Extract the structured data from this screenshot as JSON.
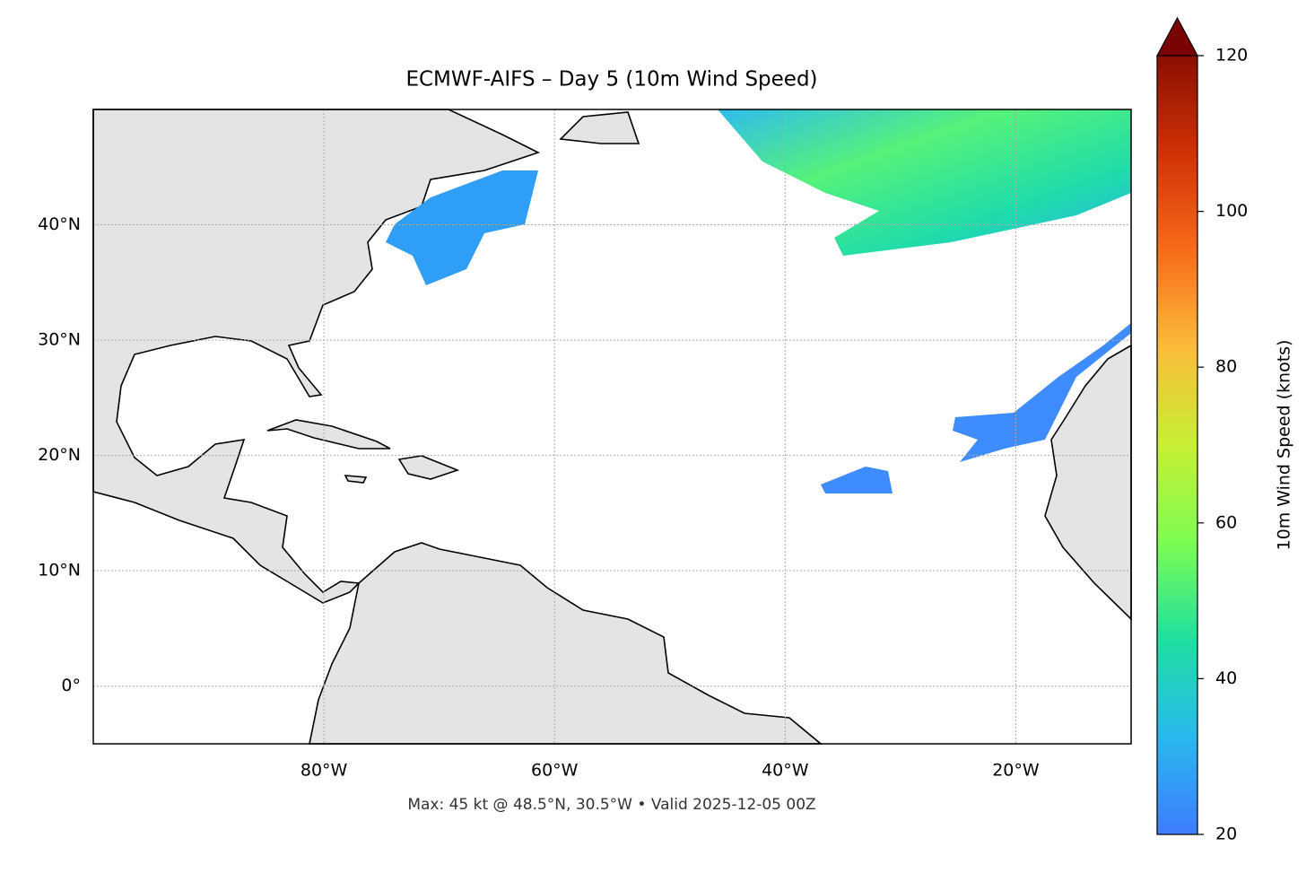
{
  "chart_data": {
    "type": "map",
    "title": "ECMWF-AIFS – Day 5 (10m Wind Speed)",
    "annotation": "Max: 45 kt @ 48.5°N, 30.5°W • Valid 2025-12-05 00Z",
    "xlim": [
      -100,
      -10
    ],
    "ylim": [
      -5,
      50
    ],
    "xticks": [
      {
        "value": -80,
        "label": "80°W"
      },
      {
        "value": -60,
        "label": "60°W"
      },
      {
        "value": -40,
        "label": "40°W"
      },
      {
        "value": -20,
        "label": "20°W"
      }
    ],
    "yticks": [
      {
        "value": 0,
        "label": "0°"
      },
      {
        "value": 10,
        "label": "10°N"
      },
      {
        "value": 20,
        "label": "20°N"
      },
      {
        "value": 30,
        "label": "30°N"
      },
      {
        "value": 40,
        "label": "40°N"
      }
    ],
    "grid": true,
    "colorbar": {
      "label": "10m Wind Speed (knots)",
      "clim": [
        20,
        120
      ],
      "ticks": [
        20,
        40,
        60,
        80,
        100,
        120
      ],
      "colors": [
        "#3e7cff",
        "#29b8ee",
        "#1ee0a0",
        "#7dfc52",
        "#c7ef34",
        "#fbbc3a",
        "#f76b1a",
        "#cf3206",
        "#8a0e02"
      ]
    }
  }
}
